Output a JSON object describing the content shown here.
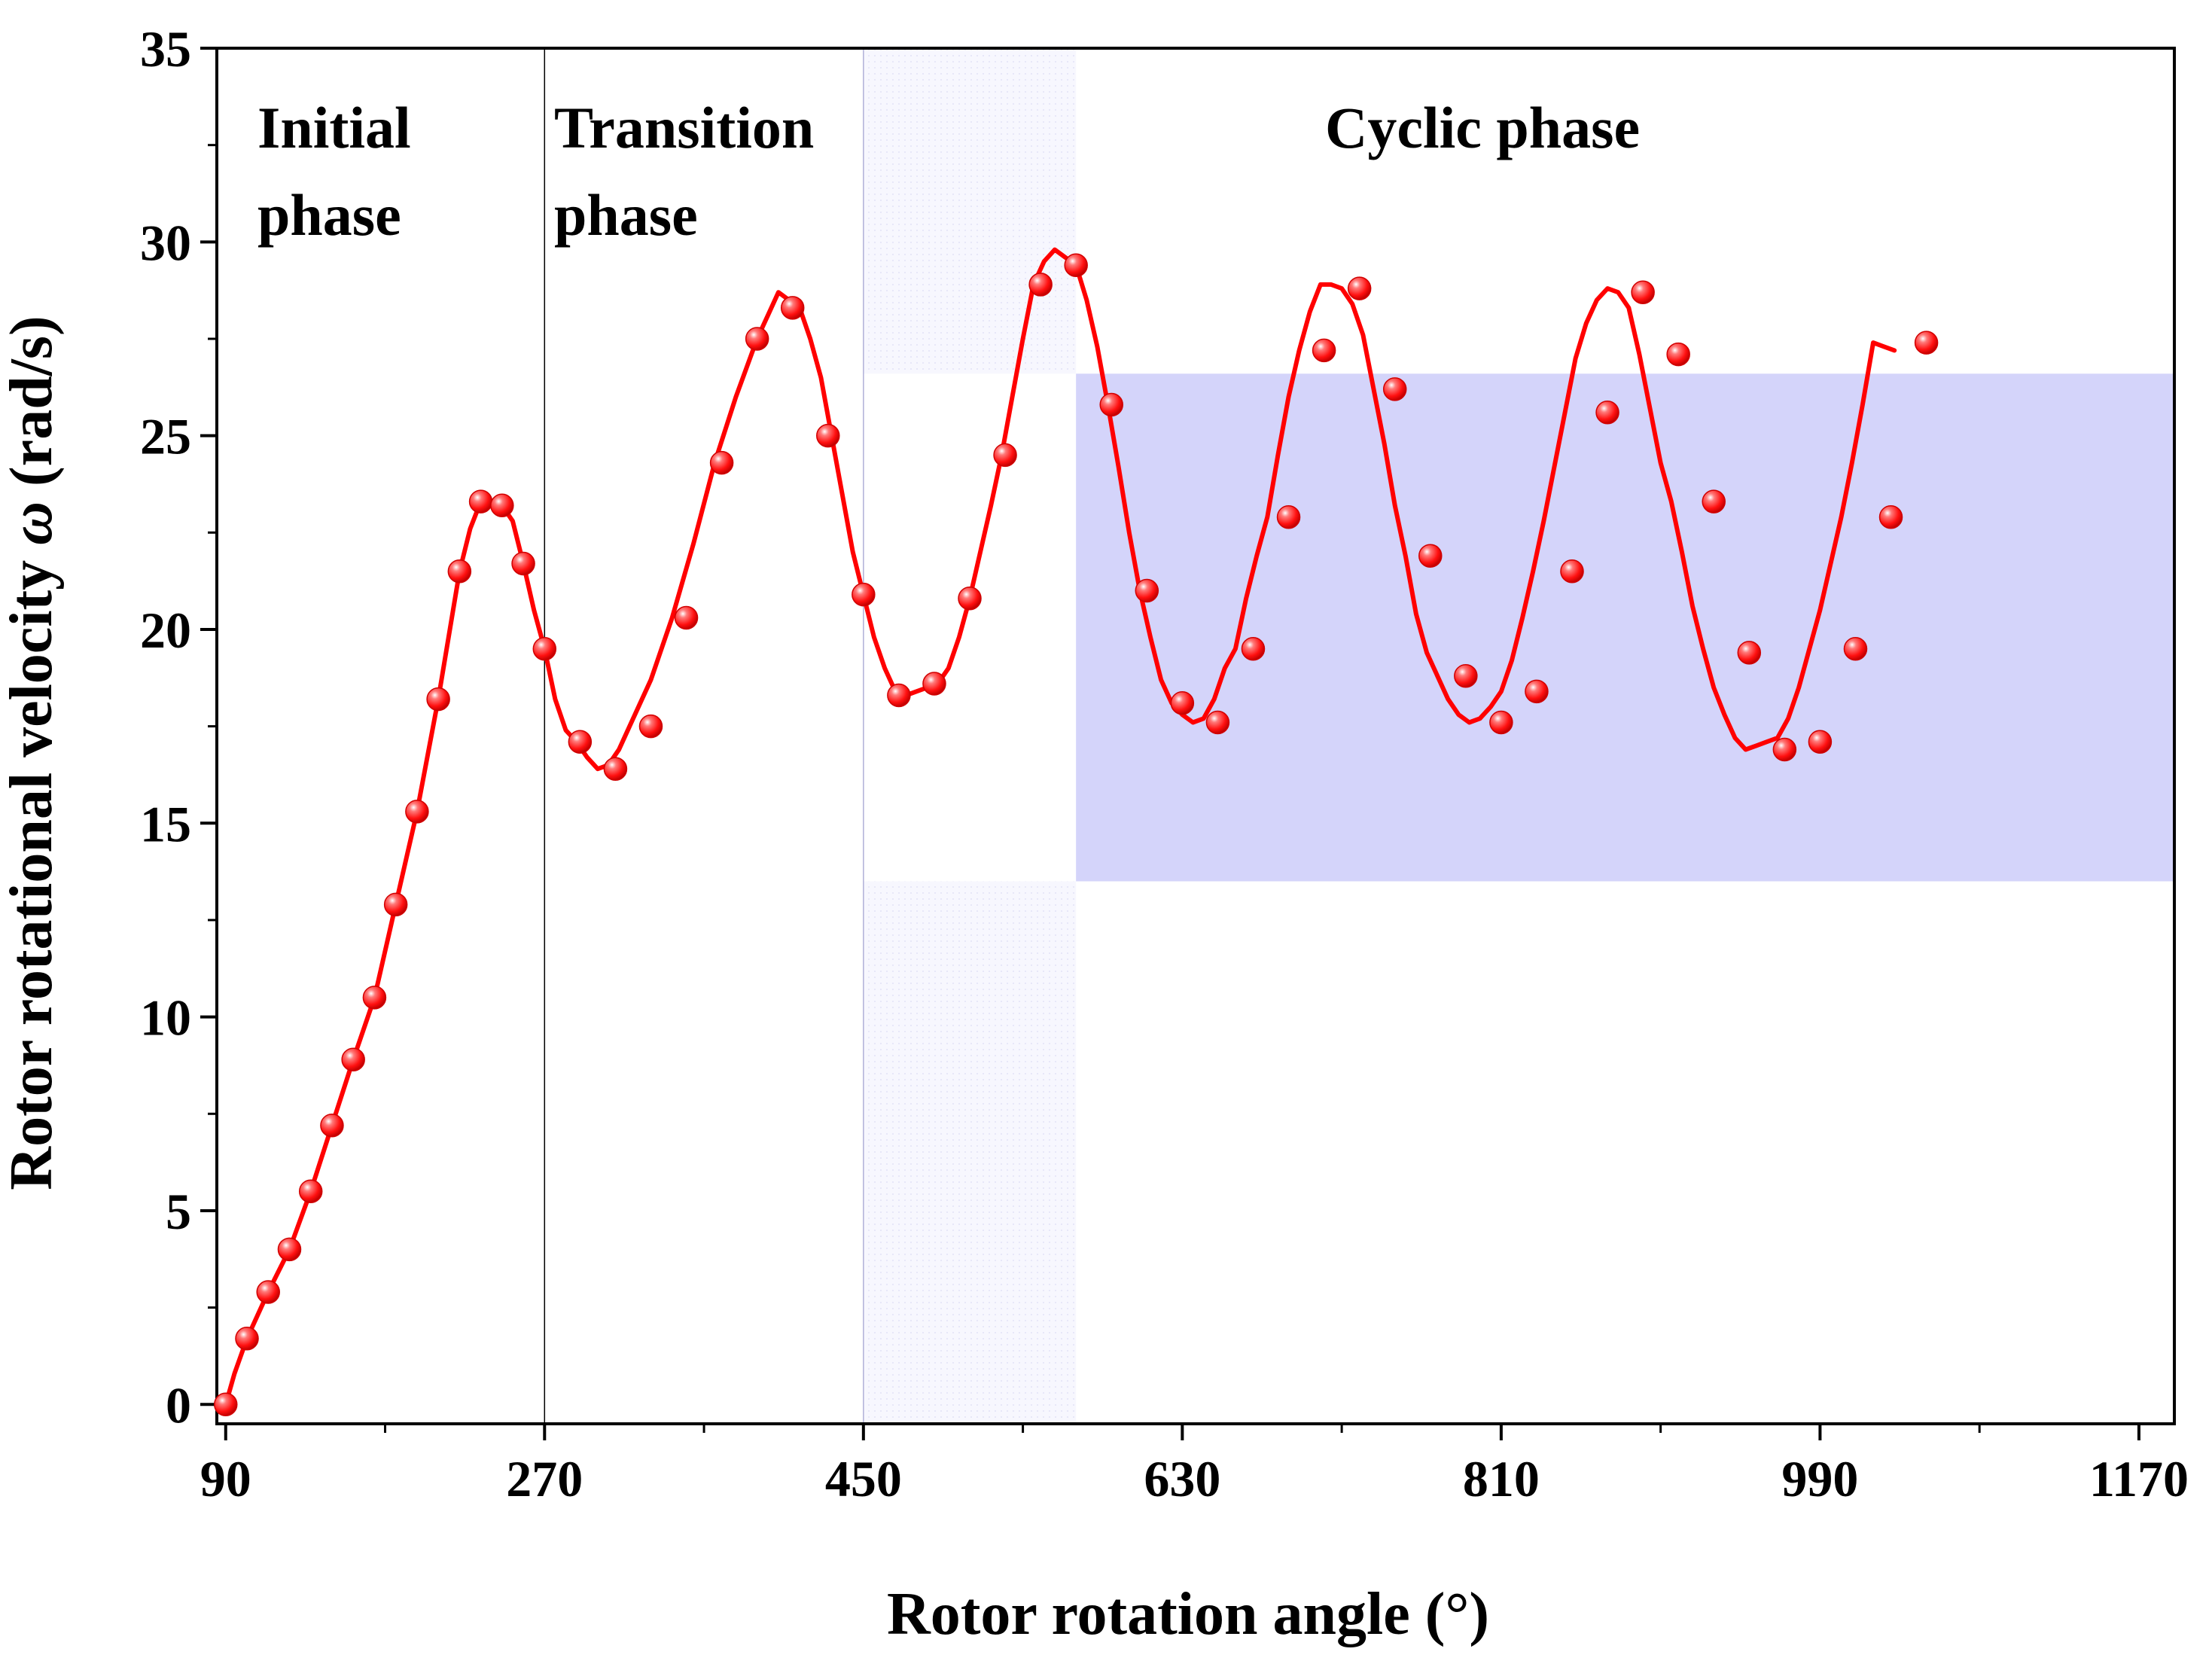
{
  "chart_data": {
    "type": "line",
    "xlabel": "Rotor rotation angle (°)",
    "ylabel_text": "Rotor rotational velocity ",
    "ylabel_symbol": "ω",
    "ylabel_unit": " (rad/s)",
    "xlim": [
      85,
      1190
    ],
    "ylim": [
      -0.5,
      35
    ],
    "xticks": [
      90,
      270,
      450,
      630,
      810,
      990,
      1170
    ],
    "yticks": [
      0,
      5,
      10,
      15,
      20,
      25,
      30,
      35
    ],
    "minor_xticks": [
      180,
      360,
      540,
      720,
      900,
      1080
    ],
    "minor_yticks": [
      2.5,
      7.5,
      12.5,
      17.5,
      22.5,
      27.5,
      32.5
    ],
    "phase_boundaries": [
      270,
      450,
      570
    ],
    "phases": [
      {
        "line1": "Initial",
        "line2": "phase"
      },
      {
        "line1": "Transition",
        "line2": "phase"
      },
      {
        "line1": "Cyclic phase",
        "line2": ""
      }
    ],
    "band": {
      "x_start": 570,
      "x_end": 1190,
      "y_low": 13.5,
      "y_high": 26.6
    },
    "pre_band": {
      "x_start": 450,
      "x_end": 570
    },
    "series": [
      {
        "name": "Rotor rotational velocity",
        "color": "#ff0000",
        "marker_color": "#ff1a1a",
        "curve": [
          [
            90,
            0
          ],
          [
            95,
            0.8
          ],
          [
            102,
            1.7
          ],
          [
            114,
            2.9
          ],
          [
            126,
            4.0
          ],
          [
            138,
            5.5
          ],
          [
            150,
            7.2
          ],
          [
            162,
            8.9
          ],
          [
            174,
            10.5
          ],
          [
            186,
            12.9
          ],
          [
            198,
            15.3
          ],
          [
            210,
            18.2
          ],
          [
            222,
            21.5
          ],
          [
            228,
            22.6
          ],
          [
            234,
            23.3
          ],
          [
            240,
            23.3
          ],
          [
            246,
            23.2
          ],
          [
            252,
            22.8
          ],
          [
            258,
            21.7
          ],
          [
            264,
            20.5
          ],
          [
            270,
            19.5
          ],
          [
            276,
            18.2
          ],
          [
            282,
            17.4
          ],
          [
            288,
            17.1
          ],
          [
            294,
            16.7
          ],
          [
            300,
            16.4
          ],
          [
            306,
            16.5
          ],
          [
            312,
            16.9
          ],
          [
            318,
            17.5
          ],
          [
            330,
            18.7
          ],
          [
            342,
            20.3
          ],
          [
            354,
            22.2
          ],
          [
            366,
            24.3
          ],
          [
            378,
            26.0
          ],
          [
            390,
            27.5
          ],
          [
            396,
            28.1
          ],
          [
            402,
            28.7
          ],
          [
            408,
            28.5
          ],
          [
            414,
            28.3
          ],
          [
            420,
            27.5
          ],
          [
            426,
            26.5
          ],
          [
            432,
            25.0
          ],
          [
            438,
            23.5
          ],
          [
            444,
            22.0
          ],
          [
            450,
            20.9
          ],
          [
            456,
            19.8
          ],
          [
            462,
            19.0
          ],
          [
            468,
            18.4
          ],
          [
            474,
            18.3
          ],
          [
            480,
            18.4
          ],
          [
            486,
            18.5
          ],
          [
            492,
            18.6
          ],
          [
            498,
            19.0
          ],
          [
            504,
            19.8
          ],
          [
            510,
            20.8
          ],
          [
            516,
            22.0
          ],
          [
            522,
            23.2
          ],
          [
            528,
            24.5
          ],
          [
            534,
            26.0
          ],
          [
            540,
            27.5
          ],
          [
            546,
            28.9
          ],
          [
            552,
            29.5
          ],
          [
            558,
            29.8
          ],
          [
            564,
            29.6
          ],
          [
            570,
            29.4
          ],
          [
            576,
            28.5
          ],
          [
            582,
            27.3
          ],
          [
            588,
            25.8
          ],
          [
            594,
            24.2
          ],
          [
            600,
            22.5
          ],
          [
            606,
            21.0
          ],
          [
            612,
            19.8
          ],
          [
            618,
            18.7
          ],
          [
            624,
            18.1
          ],
          [
            630,
            17.8
          ],
          [
            636,
            17.6
          ],
          [
            642,
            17.7
          ],
          [
            648,
            18.2
          ],
          [
            654,
            19.0
          ],
          [
            660,
            19.5
          ],
          [
            666,
            20.8
          ],
          [
            672,
            21.9
          ],
          [
            678,
            22.9
          ],
          [
            684,
            24.5
          ],
          [
            690,
            26.0
          ],
          [
            696,
            27.2
          ],
          [
            702,
            28.2
          ],
          [
            708,
            28.9
          ],
          [
            714,
            28.9
          ],
          [
            720,
            28.8
          ],
          [
            726,
            28.4
          ],
          [
            732,
            27.6
          ],
          [
            738,
            26.2
          ],
          [
            744,
            24.8
          ],
          [
            750,
            23.2
          ],
          [
            756,
            21.9
          ],
          [
            762,
            20.4
          ],
          [
            768,
            19.4
          ],
          [
            774,
            18.8
          ],
          [
            780,
            18.2
          ],
          [
            786,
            17.8
          ],
          [
            792,
            17.6
          ],
          [
            798,
            17.7
          ],
          [
            804,
            18.0
          ],
          [
            810,
            18.4
          ],
          [
            816,
            19.2
          ],
          [
            822,
            20.3
          ],
          [
            828,
            21.5
          ],
          [
            834,
            22.8
          ],
          [
            840,
            24.2
          ],
          [
            846,
            25.6
          ],
          [
            852,
            27.0
          ],
          [
            858,
            27.9
          ],
          [
            864,
            28.5
          ],
          [
            870,
            28.8
          ],
          [
            876,
            28.7
          ],
          [
            882,
            28.3
          ],
          [
            888,
            27.1
          ],
          [
            894,
            25.7
          ],
          [
            900,
            24.3
          ],
          [
            906,
            23.3
          ],
          [
            912,
            22.0
          ],
          [
            918,
            20.6
          ],
          [
            924,
            19.5
          ],
          [
            930,
            18.5
          ],
          [
            936,
            17.8
          ],
          [
            942,
            17.2
          ],
          [
            948,
            16.9
          ],
          [
            954,
            17.0
          ],
          [
            960,
            17.1
          ],
          [
            966,
            17.2
          ],
          [
            972,
            17.7
          ],
          [
            978,
            18.5
          ],
          [
            984,
            19.5
          ],
          [
            990,
            20.5
          ],
          [
            996,
            21.7
          ],
          [
            1002,
            22.9
          ],
          [
            1008,
            24.3
          ],
          [
            1014,
            25.8
          ],
          [
            1020,
            27.4
          ],
          [
            1026,
            27.3
          ],
          [
            1032,
            27.2
          ]
        ],
        "markers": [
          [
            90,
            0
          ],
          [
            102,
            1.7
          ],
          [
            114,
            2.9
          ],
          [
            126,
            4.0
          ],
          [
            138,
            5.5
          ],
          [
            150,
            7.2
          ],
          [
            162,
            8.9
          ],
          [
            174,
            10.5
          ],
          [
            186,
            12.9
          ],
          [
            198,
            15.3
          ],
          [
            210,
            18.2
          ],
          [
            222,
            21.5
          ],
          [
            234,
            23.3
          ],
          [
            246,
            23.2
          ],
          [
            258,
            21.7
          ],
          [
            270,
            19.5
          ],
          [
            290,
            17.1
          ],
          [
            310,
            16.4
          ],
          [
            330,
            17.5
          ],
          [
            350,
            20.3
          ],
          [
            370,
            24.3
          ],
          [
            390,
            27.5
          ],
          [
            410,
            28.3
          ],
          [
            430,
            25.0
          ],
          [
            450,
            20.9
          ],
          [
            470,
            18.3
          ],
          [
            490,
            18.6
          ],
          [
            510,
            20.8
          ],
          [
            530,
            24.5
          ],
          [
            550,
            28.9
          ],
          [
            570,
            29.4
          ],
          [
            590,
            25.8
          ],
          [
            610,
            21.0
          ],
          [
            630,
            18.1
          ],
          [
            650,
            17.6
          ],
          [
            670,
            19.5
          ],
          [
            690,
            22.9
          ],
          [
            710,
            27.2
          ],
          [
            730,
            28.8
          ],
          [
            750,
            26.2
          ],
          [
            770,
            21.9
          ],
          [
            790,
            18.8
          ],
          [
            810,
            17.6
          ],
          [
            830,
            18.4
          ],
          [
            850,
            21.5
          ],
          [
            870,
            25.6
          ],
          [
            890,
            28.7
          ],
          [
            910,
            27.1
          ],
          [
            930,
            23.3
          ],
          [
            950,
            19.4
          ],
          [
            970,
            16.9
          ],
          [
            990,
            17.1
          ],
          [
            1010,
            19.5
          ],
          [
            1030,
            22.9
          ],
          [
            1050,
            27.4
          ]
        ]
      }
    ]
  }
}
